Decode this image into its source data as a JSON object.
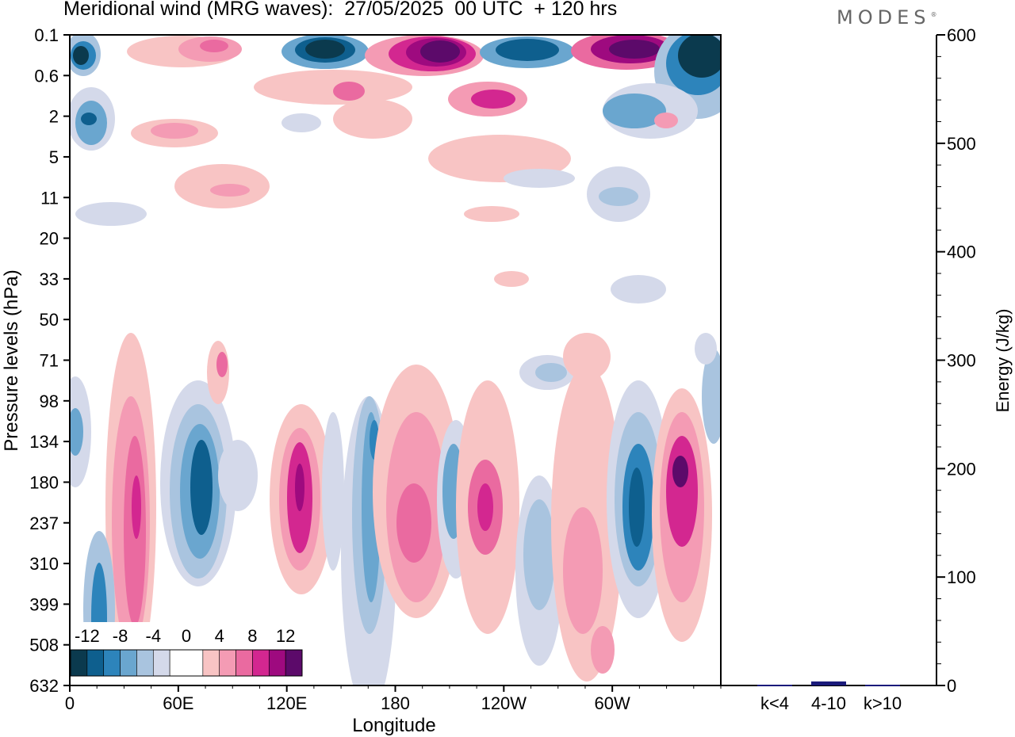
{
  "header": {
    "title": "Meridional wind (MRG waves):  27/05/2025  00 UTC  + 120 hrs",
    "brand": "MODES"
  },
  "chart_data": [
    {
      "type": "heatmap",
      "title": "Meridional wind (MRG waves):  27/05/2025  00 UTC  + 120 hrs",
      "xlabel": "Longitude",
      "ylabel": "Pressure levels (hPa)",
      "x_ticks": [
        {
          "lon": 0,
          "label": "0"
        },
        {
          "lon": 60,
          "label": "60E"
        },
        {
          "lon": 120,
          "label": "120E"
        },
        {
          "lon": 180,
          "label": "180"
        },
        {
          "lon": 240,
          "label": "120W"
        },
        {
          "lon": 300,
          "label": "60W"
        }
      ],
      "xlim": [
        0,
        360
      ],
      "y_levels": [
        "0.1",
        "0.6",
        "2",
        "5",
        "11",
        "20",
        "33",
        "50",
        "71",
        "98",
        "134",
        "180",
        "237",
        "310",
        "399",
        "508",
        "632"
      ],
      "colorbar": {
        "tick_labels": [
          "-12",
          "-8",
          "-4",
          "0",
          "4",
          "8",
          "12"
        ],
        "bins": [
          -14,
          -12,
          -10,
          -8,
          -6,
          -4,
          -2,
          2,
          4,
          6,
          8,
          10,
          12,
          14
        ],
        "colors": [
          "#0b3a4e",
          "#0e5f8e",
          "#2d84bb",
          "#6aa6cf",
          "#a9c4df",
          "#d4d9ea",
          "#ffffff",
          "#f8c4c4",
          "#f49bb4",
          "#ea6aa0",
          "#d32790",
          "#9e0a7f",
          "#5c0a6a"
        ]
      },
      "features": [
        {
          "lon": 5,
          "level": "0.1",
          "value": -14
        },
        {
          "lon": 145,
          "level": "0.1",
          "value": -14
        },
        {
          "lon": 192,
          "level": "0.1",
          "value": 14
        },
        {
          "lon": 260,
          "level": "0.1",
          "value": -12
        },
        {
          "lon": 310,
          "level": "0.1",
          "value": 14
        },
        {
          "lon": 355,
          "level": "0.1",
          "value": -14
        },
        {
          "lon": 238,
          "level": "2",
          "value": 10
        },
        {
          "lon": 10,
          "level": "2",
          "value": -12
        },
        {
          "lon": 73,
          "level": "180",
          "value": -11
        },
        {
          "lon": 38,
          "level": "237",
          "value": 10
        },
        {
          "lon": 128,
          "level": "180",
          "value": 11
        },
        {
          "lon": 166,
          "level": "134",
          "value": -9
        },
        {
          "lon": 193,
          "level": "237",
          "value": 8
        },
        {
          "lon": 225,
          "level": "237",
          "value": 9
        },
        {
          "lon": 316,
          "level": "180",
          "value": -11
        },
        {
          "lon": 340,
          "level": "180",
          "value": 12
        }
      ]
    },
    {
      "type": "bar",
      "categories": [
        "k<4",
        "4-10",
        "k>10"
      ],
      "values": [
        0,
        3,
        0
      ],
      "ylabel": "Energy (J/kg)",
      "ylim": [
        0,
        600
      ],
      "y_ticks": [
        0,
        100,
        200,
        300,
        400,
        500,
        600
      ],
      "bar_color": "#1a1a7a"
    }
  ]
}
